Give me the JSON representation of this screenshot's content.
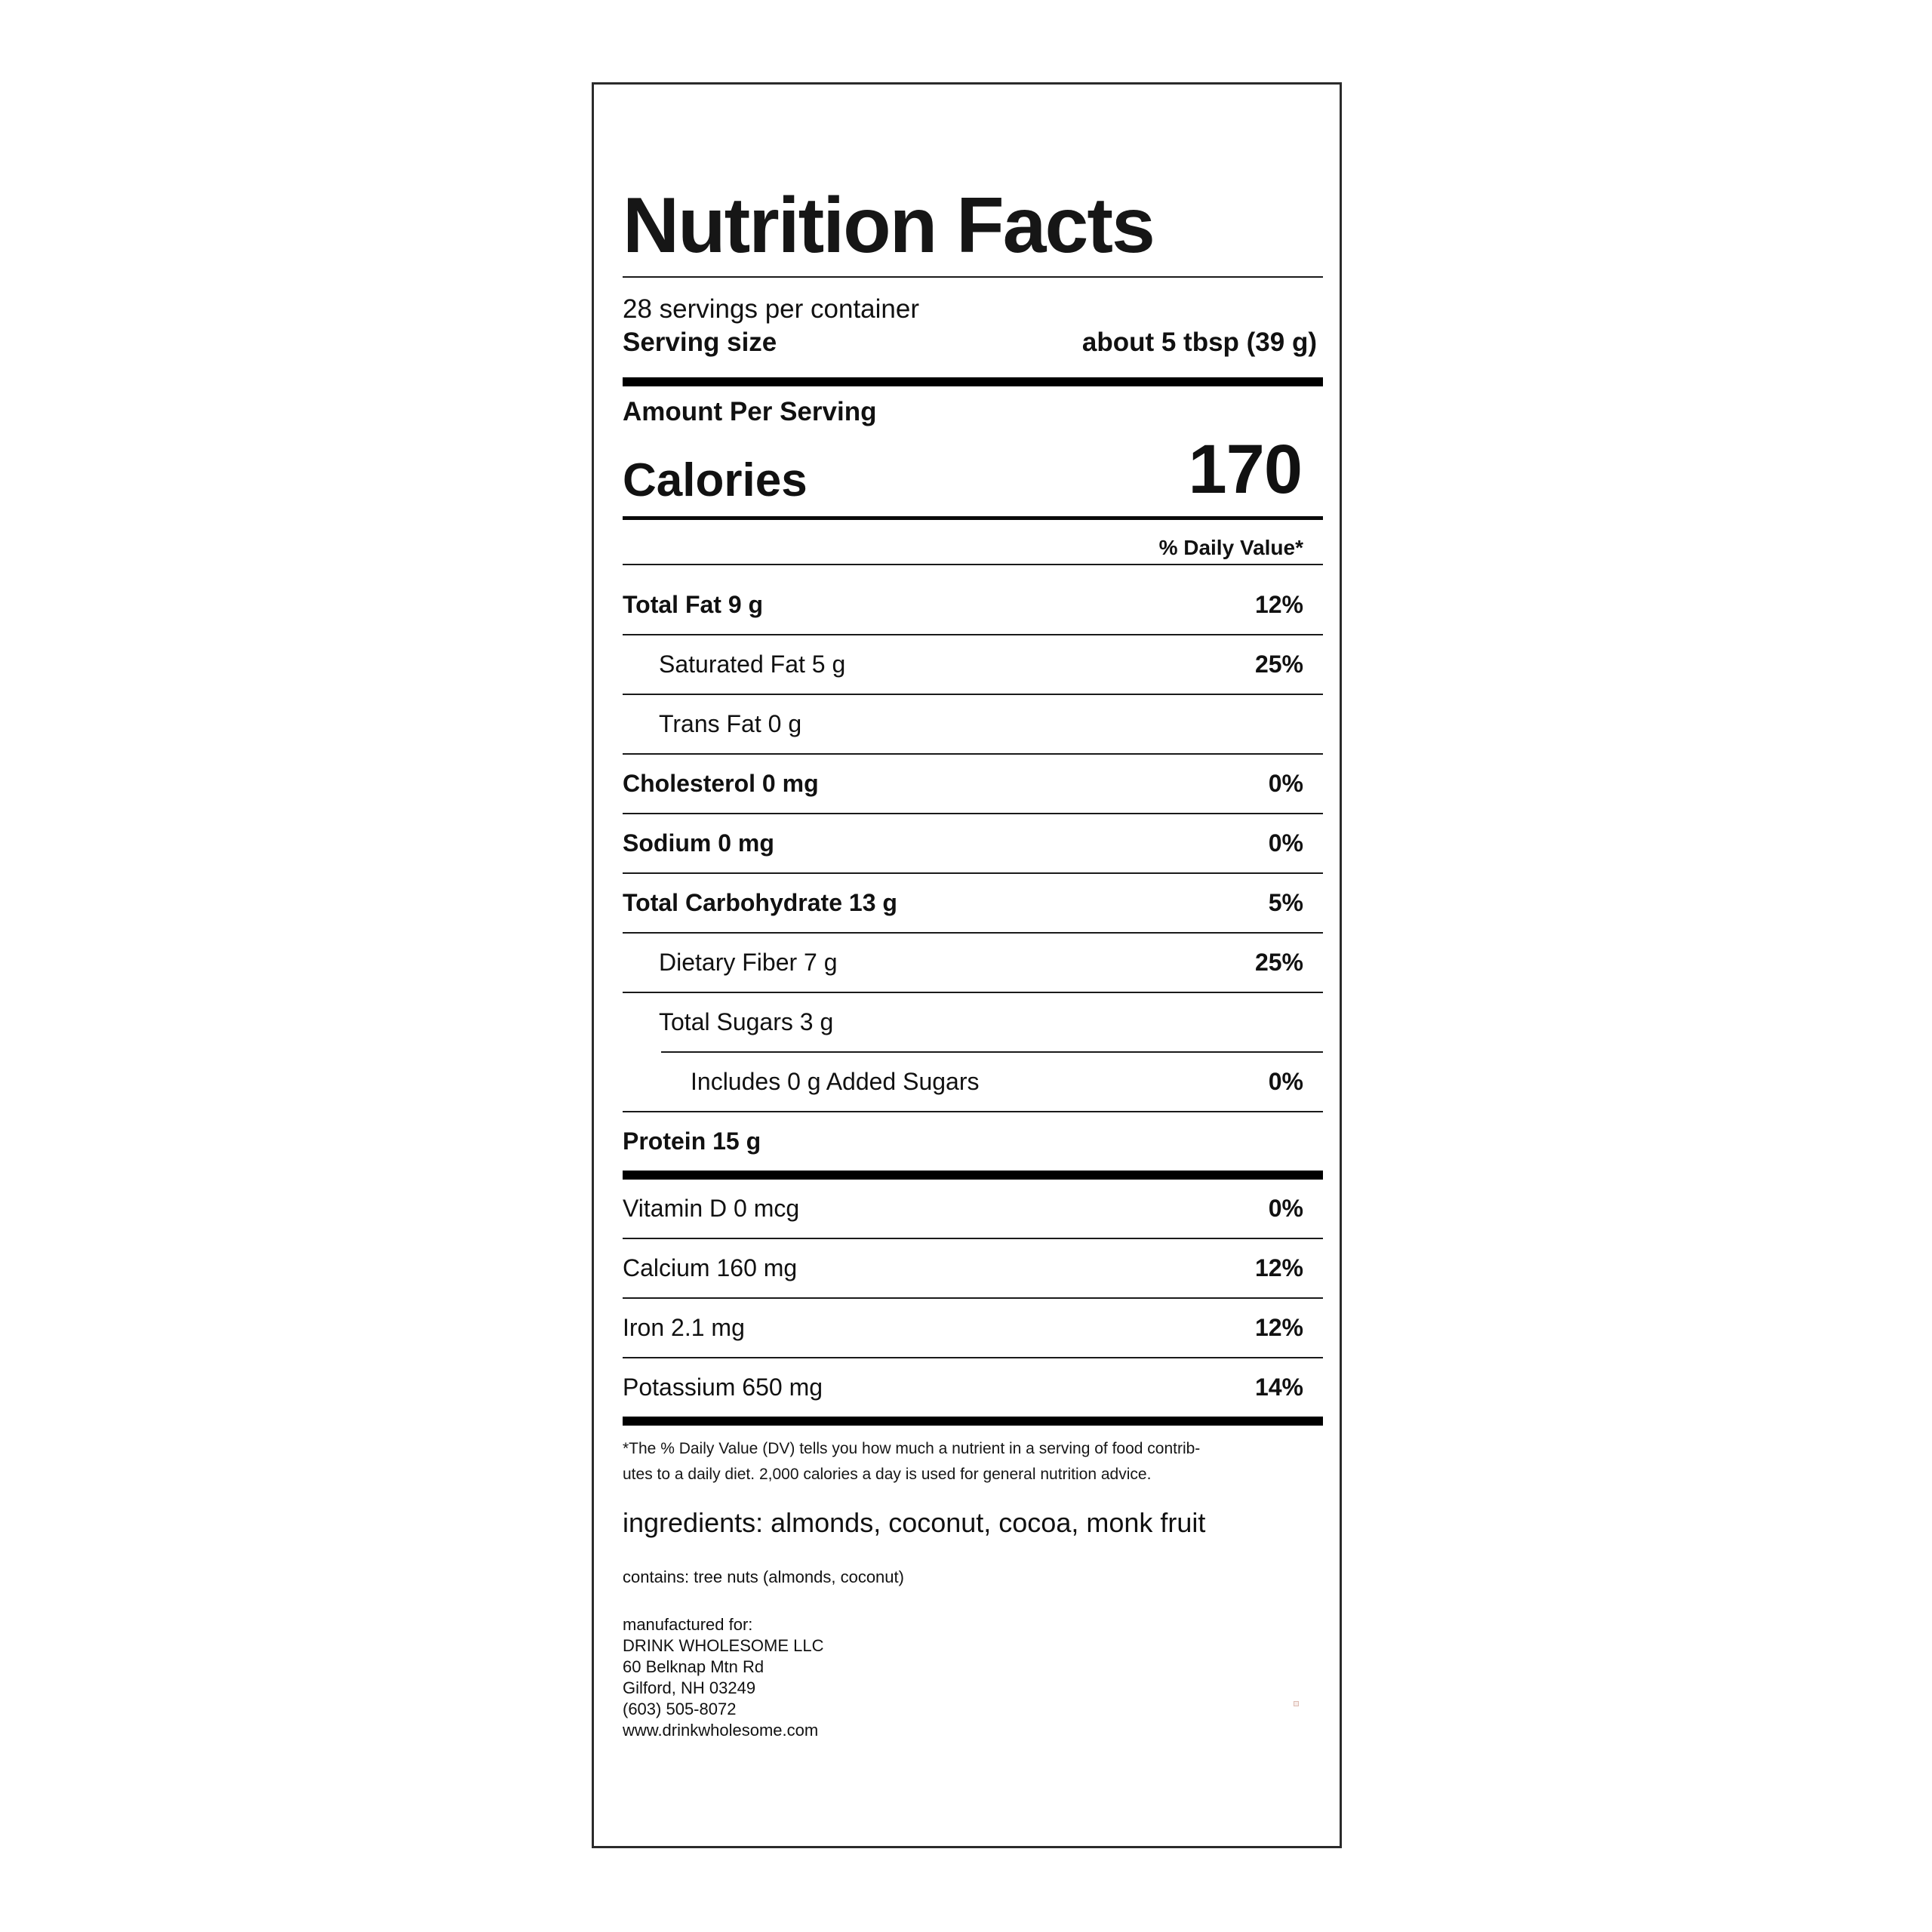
{
  "label": {
    "title": "Nutrition Facts",
    "servings_per_container": "28 servings per container",
    "serving_size_label": "Serving size",
    "serving_size_value": "about 5 tbsp (39 g)",
    "amount_per_serving": "Amount Per Serving",
    "calories_label": "Calories",
    "calories_value": "170",
    "daily_value_header": "% Daily Value*",
    "nutrient_rows": [
      {
        "name": "Total Fat 9 g",
        "dv": "12%"
      },
      {
        "name": "Saturated Fat 5 g",
        "dv": "25%"
      },
      {
        "name": "Trans Fat 0 g",
        "dv": ""
      },
      {
        "name": "Cholesterol 0 mg",
        "dv": "0%"
      },
      {
        "name": "Sodium 0 mg",
        "dv": "0%"
      },
      {
        "name": "Total Carbohydrate 13 g",
        "dv": "5%"
      },
      {
        "name": "Dietary Fiber 7 g",
        "dv": "25%"
      },
      {
        "name": "Total Sugars 3 g",
        "dv": ""
      },
      {
        "name": "Includes 0 g Added Sugars",
        "dv": "0%"
      },
      {
        "name": "Protein 15 g",
        "dv": ""
      }
    ],
    "mineral_rows": [
      {
        "name": "Vitamin D 0 mcg",
        "dv": "0%"
      },
      {
        "name": "Calcium 160 mg",
        "dv": "12%"
      },
      {
        "name": "Iron 2.1 mg",
        "dv": "12%"
      },
      {
        "name": "Potassium 650 mg",
        "dv": "14%"
      }
    ],
    "footnote_line1": "*The % Daily Value (DV) tells you how much a nutrient in a serving of food contrib-",
    "footnote_line2": "utes to a daily diet. 2,000 calories a day is used for general nutrition advice.",
    "ingredients": "ingredients: almonds, coconut, cocoa, monk fruit",
    "contains": "contains: tree nuts (almonds, coconut)",
    "manufactured": [
      "manufactured for:",
      "DRINK WHOLESOME LLC",
      "60 Belknap Mtn Rd",
      "Gilford, NH 03249",
      "(603) 505-8072",
      "www.drinkwholesome.com"
    ]
  },
  "colors": {
    "text": "#111111",
    "border": "#2b2b2b",
    "rule": "#1a1a1a",
    "thick_bar": "#000000"
  }
}
